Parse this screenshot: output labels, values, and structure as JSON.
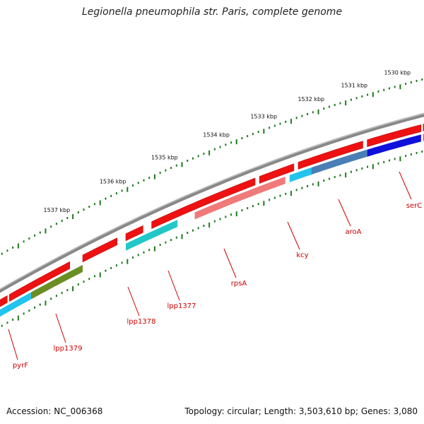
{
  "title": "Legionella pneumophila str. Paris, complete genome",
  "footer": {
    "accession": "Accession: NC_006368",
    "summary": "Topology: circular; Length: 3,503,610 bp; Genes: 3,080"
  },
  "ticks": [
    {
      "label": "1530 kbp",
      "kbp": 1530
    },
    {
      "label": "1531 kbp",
      "kbp": 1531
    },
    {
      "label": "1532 kbp",
      "kbp": 1532
    },
    {
      "label": "1533 kbp",
      "kbp": 1533
    },
    {
      "label": "1534 kbp",
      "kbp": 1534
    },
    {
      "label": "1535 kbp",
      "kbp": 1535
    },
    {
      "label": "1536 kbp",
      "kbp": 1536
    },
    {
      "label": "1537 kbp",
      "kbp": 1537
    }
  ],
  "genes": [
    {
      "label": "serC"
    },
    {
      "label": "aroA"
    },
    {
      "label": "kcy"
    },
    {
      "label": "rpsA"
    },
    {
      "label": "lpp1377"
    },
    {
      "label": "lpp1378"
    },
    {
      "label": "lpp1379"
    },
    {
      "label": "pyrF"
    }
  ],
  "colors": {
    "backbone": "#888888",
    "cds": "#ee1111",
    "tick": "#1e7a1e",
    "label": "#cc0000",
    "cyan": "#22c4ee",
    "teal": "#22c8c8",
    "olive": "#6b8e23",
    "steel": "#4a7fb5",
    "blue": "#1010dd",
    "salmon": "#f07a7a",
    "magenta": "#ee22cc"
  }
}
